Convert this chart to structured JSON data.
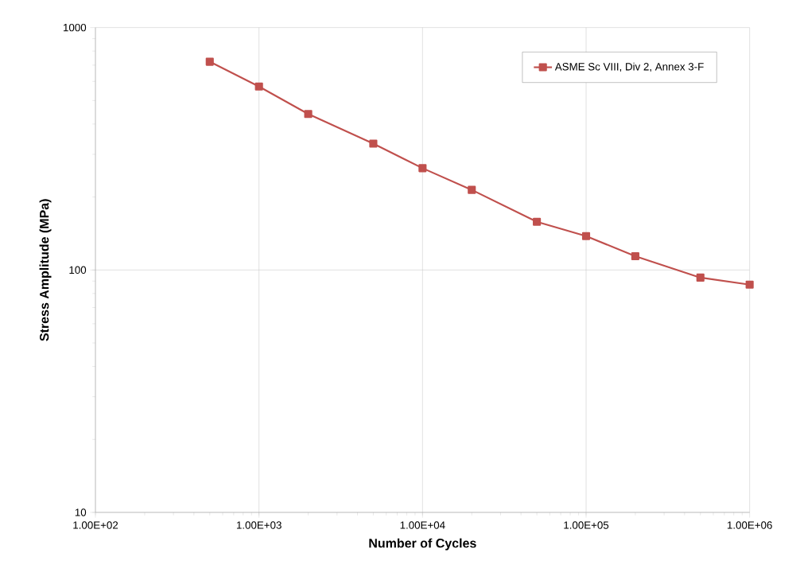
{
  "chart_data": {
    "type": "line",
    "xlabel": "Number of Cycles",
    "ylabel": "Stress Amplitude (MPa)",
    "log": "xy",
    "grid": true,
    "legend": "top right",
    "marker": "square",
    "line_style": "solid",
    "xlim": [
      100,
      1000000
    ],
    "ylim": [
      10,
      1000
    ],
    "xticks": [
      {
        "value": 100,
        "label": "1.00E+02"
      },
      {
        "value": 1000,
        "label": "1.00E+03"
      },
      {
        "value": 10000,
        "label": "1.00E+04"
      },
      {
        "value": 100000,
        "label": "1.00E+05"
      },
      {
        "value": 1000000,
        "label": "1.00E+06"
      }
    ],
    "yticks": [
      10,
      100,
      1000
    ],
    "x": [
      500,
      1000,
      2000,
      5000,
      10000,
      20000,
      50000,
      100000,
      200000,
      500000,
      1000000
    ],
    "series": [
      {
        "name": "ASME Sc VIII, Div 2, Annex 3-F",
        "color": "#c0504d",
        "values": [
          723,
          571,
          440,
          332,
          263,
          214,
          158,
          138,
          114,
          93,
          87
        ]
      }
    ]
  }
}
